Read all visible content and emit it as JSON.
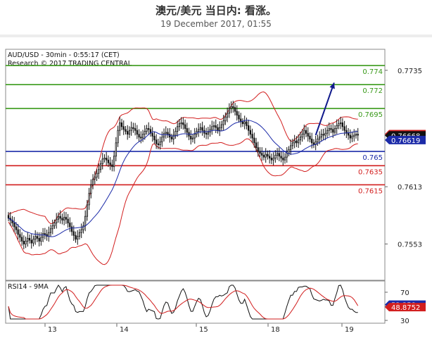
{
  "header": {
    "title": "澳元/美元 当日内: 看涨。",
    "date": "19 December 2017, 01:55"
  },
  "chart_data": [
    {
      "type": "candlestick",
      "panel": "price",
      "title": "AUD/USD - 30min - 0:55:17 (CET)",
      "subtitle": "Research © 2017 TRADING CENTRAL",
      "ylim": [
        0.7515,
        0.7757
      ],
      "y_ticks": [
        0.7735,
        0.7613,
        0.7553
      ],
      "y_tick_labels": [
        "0.7735",
        "0.7613",
        "0.7553"
      ],
      "x_ticks": [
        13,
        14,
        15,
        18,
        19
      ],
      "x_tick_labels": [
        "13",
        "14",
        "15",
        "18",
        "19"
      ],
      "grid": false,
      "levels": [
        {
          "value": 0.774,
          "label": "0.774",
          "color": "#3a9a1a"
        },
        {
          "value": 0.772,
          "label": "0.772",
          "color": "#3a9a1a"
        },
        {
          "value": 0.7695,
          "label": "0.7695",
          "color": "#3a9a1a"
        },
        {
          "value": 0.765,
          "label": "0.765",
          "color": "#1c2ba8"
        },
        {
          "value": 0.7635,
          "label": "0.7635",
          "color": "#d21e1e"
        },
        {
          "value": 0.7615,
          "label": "0.7615",
          "color": "#d21e1e"
        }
      ],
      "price_tags": [
        {
          "value": 0.76681,
          "label": "0.76681",
          "color": "#d21e1e"
        },
        {
          "value": 0.76668,
          "label": "0.76668",
          "color": "#111111"
        },
        {
          "value": 0.76619,
          "label": "0.76619",
          "color": "#1c2ba8"
        }
      ],
      "forecast_arrow": {
        "from": [
          40,
          0.7667
        ],
        "to": [
          42.4,
          0.7722
        ],
        "color": "#101a8c"
      },
      "candles": {
        "x_start": 0,
        "x_step": 0.25,
        "close": [
          0.758,
          0.7578,
          0.7575,
          0.7571,
          0.7568,
          0.7563,
          0.756,
          0.7556,
          0.7553,
          0.7556,
          0.7559,
          0.7557,
          0.7554,
          0.7558,
          0.7561,
          0.7559,
          0.7556,
          0.756,
          0.7564,
          0.7563,
          0.7561,
          0.7565,
          0.7569,
          0.7572,
          0.7575,
          0.7579,
          0.7582,
          0.758,
          0.7578,
          0.7581,
          0.7579,
          0.7575,
          0.7571,
          0.7566,
          0.7562,
          0.7558,
          0.7561,
          0.7565,
          0.7568,
          0.7572,
          0.7582,
          0.7594,
          0.7606,
          0.7615,
          0.7621,
          0.7623,
          0.7627,
          0.7631,
          0.7637,
          0.7642,
          0.7643,
          0.7641,
          0.7638,
          0.7636,
          0.7634,
          0.7645,
          0.7659,
          0.7672,
          0.768,
          0.7676,
          0.7673,
          0.7671,
          0.7668,
          0.7672,
          0.7675,
          0.7674,
          0.7672,
          0.7668,
          0.7665,
          0.7664,
          0.7668,
          0.7671,
          0.7674,
          0.7673,
          0.7669,
          0.7666,
          0.7662,
          0.7658,
          0.7657,
          0.766,
          0.7665,
          0.7669,
          0.767,
          0.7668,
          0.7665,
          0.7663,
          0.7667,
          0.7671,
          0.7676,
          0.7679,
          0.768,
          0.7678,
          0.7674,
          0.767,
          0.7666,
          0.7663,
          0.7664,
          0.7668,
          0.7671,
          0.7673,
          0.7675,
          0.7672,
          0.7669,
          0.7668,
          0.767,
          0.7673,
          0.7676,
          0.7677,
          0.7675,
          0.7672,
          0.7675,
          0.7678,
          0.7682,
          0.7686,
          0.769,
          0.7695,
          0.7697,
          0.7696,
          0.7692,
          0.7688,
          0.7684,
          0.7681,
          0.7679,
          0.7681,
          0.7677,
          0.7672,
          0.7668,
          0.7664,
          0.7659,
          0.7654,
          0.765,
          0.7648,
          0.7646,
          0.7644,
          0.7647,
          0.7645,
          0.7643,
          0.7641,
          0.7643,
          0.7646,
          0.7648,
          0.7645,
          0.7643,
          0.7641,
          0.7644,
          0.7648,
          0.7652,
          0.7656,
          0.7659,
          0.7661,
          0.7659,
          0.7662,
          0.7665,
          0.7668,
          0.7672,
          0.7669,
          0.7666,
          0.7663,
          0.7659,
          0.7657,
          0.766,
          0.7663,
          0.7665,
          0.7668,
          0.7667,
          0.7669,
          0.7672,
          0.7674,
          0.7673,
          0.767,
          0.7674,
          0.7677,
          0.7679,
          0.768,
          0.7676,
          0.7672,
          0.7669,
          0.7667,
          0.7664,
          0.7666,
          0.7667,
          0.7668,
          0.7667
        ]
      },
      "overlays": [
        {
          "name": "",
          "kind": "moving-average",
          "color": "#1c2ba8"
        },
        {
          "name": "",
          "kind": "bollinger-bands",
          "color": "#d21e1e"
        }
      ]
    },
    {
      "type": "line",
      "panel": "rsi",
      "title": "RSI14 - 9MA",
      "ylim": [
        26,
        86
      ],
      "y_ticks": [
        70,
        50,
        30
      ],
      "y_tick_labels": [
        "70",
        "50",
        "30"
      ],
      "price_tags": [
        {
          "value": 52.358,
          "label": "52.358",
          "color": "#1c2ba8"
        },
        {
          "value": 48.8752,
          "label": "48.8752",
          "color": "#d21e1e"
        }
      ],
      "series": [
        {
          "name": "",
          "color": "#111111",
          "kind": "rsi"
        },
        {
          "name": "",
          "color": "#d21e1e",
          "kind": "ma9"
        }
      ]
    }
  ]
}
